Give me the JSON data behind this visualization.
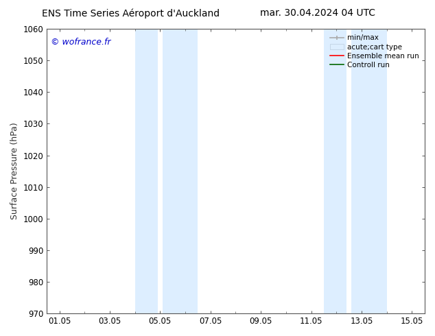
{
  "title_left": "ENS Time Series Aéroport d'Auckland",
  "title_right": "mar. 30.04.2024 04 UTC",
  "ylabel": "Surface Pressure (hPa)",
  "ylim": [
    970,
    1060
  ],
  "yticks": [
    970,
    980,
    990,
    1000,
    1010,
    1020,
    1030,
    1040,
    1050,
    1060
  ],
  "xlabel_ticks": [
    "01.05",
    "03.05",
    "05.05",
    "07.05",
    "09.05",
    "11.05",
    "13.05",
    "15.05"
  ],
  "xlabel_values": [
    0,
    2,
    4,
    6,
    8,
    10,
    12,
    14
  ],
  "xlim": [
    -0.5,
    14.5
  ],
  "shaded_regions": [
    {
      "xmin": 3.0,
      "xmax": 3.9,
      "color": "#ddeeff"
    },
    {
      "xmin": 4.1,
      "xmax": 5.5,
      "color": "#ddeeff"
    },
    {
      "xmin": 10.5,
      "xmax": 11.4,
      "color": "#ddeeff"
    },
    {
      "xmin": 11.6,
      "xmax": 13.0,
      "color": "#ddeeff"
    }
  ],
  "watermark_text": "© wofrance.fr",
  "watermark_color": "#0000cc",
  "background_color": "#ffffff",
  "plot_bg_color": "#ffffff",
  "legend_entries": [
    {
      "label": "min/max",
      "color": "#aaaaaa",
      "lw": 1.5
    },
    {
      "label": "acute;cart type",
      "facecolor": "#ddeeff",
      "edgecolor": "#aabbcc"
    },
    {
      "label": "Ensemble mean run",
      "color": "#ff0000",
      "lw": 1.5
    },
    {
      "label": "Controll run",
      "color": "#006600",
      "lw": 1.5
    }
  ],
  "title_fontsize": 10,
  "tick_fontsize": 8.5,
  "ylabel_fontsize": 9,
  "watermark_fontsize": 9
}
